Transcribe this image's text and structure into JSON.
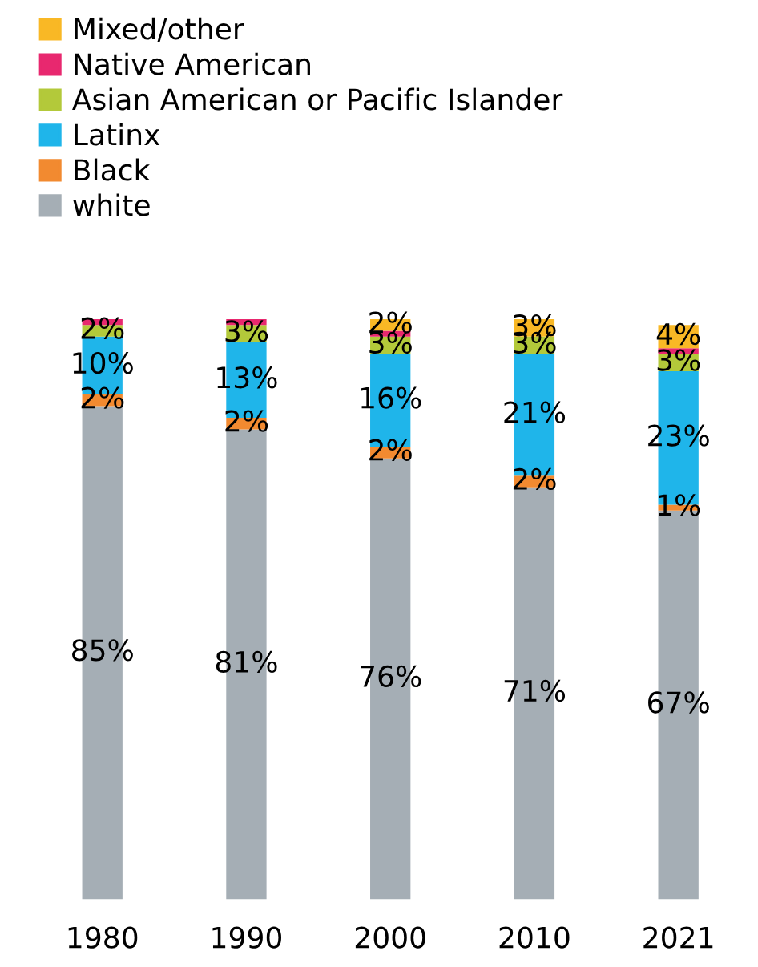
{
  "chart_data": {
    "type": "bar",
    "stacked": true,
    "categories": [
      "1980",
      "1990",
      "2000",
      "2010",
      "2021"
    ],
    "legend": "top left",
    "series": [
      {
        "name": "white",
        "color": "#a5aeb5",
        "values": [
          85,
          81,
          76,
          71,
          67
        ],
        "value_labels": [
          "85%",
          "81%",
          "76%",
          "71%",
          "67%"
        ]
      },
      {
        "name": "Black",
        "color": "#f28a30",
        "values": [
          2,
          2,
          2,
          2,
          1
        ],
        "value_labels": [
          "2%",
          "2%",
          "2%",
          "2%",
          "1%"
        ]
      },
      {
        "name": "Latinx",
        "color": "#1fb5ea",
        "values": [
          10,
          13,
          16,
          21,
          23
        ],
        "value_labels": [
          "10%",
          "13%",
          "16%",
          "21%",
          "23%"
        ]
      },
      {
        "name": "Asian American or Pacific Islander",
        "color": "#b3c93a",
        "values": [
          2,
          3,
          3,
          3,
          3
        ],
        "value_labels": [
          "2%",
          "3%",
          "3%",
          "3%",
          "3%"
        ]
      },
      {
        "name": "Native American",
        "color": "#e8286f",
        "values": [
          1,
          1,
          1,
          0,
          1
        ],
        "value_labels": [
          null,
          null,
          null,
          null,
          null
        ]
      },
      {
        "name": "Mixed/other",
        "color": "#f9b825",
        "values": [
          0,
          0,
          2,
          3,
          4
        ],
        "value_labels": [
          null,
          null,
          "2%",
          "3%",
          "4%"
        ]
      }
    ]
  }
}
